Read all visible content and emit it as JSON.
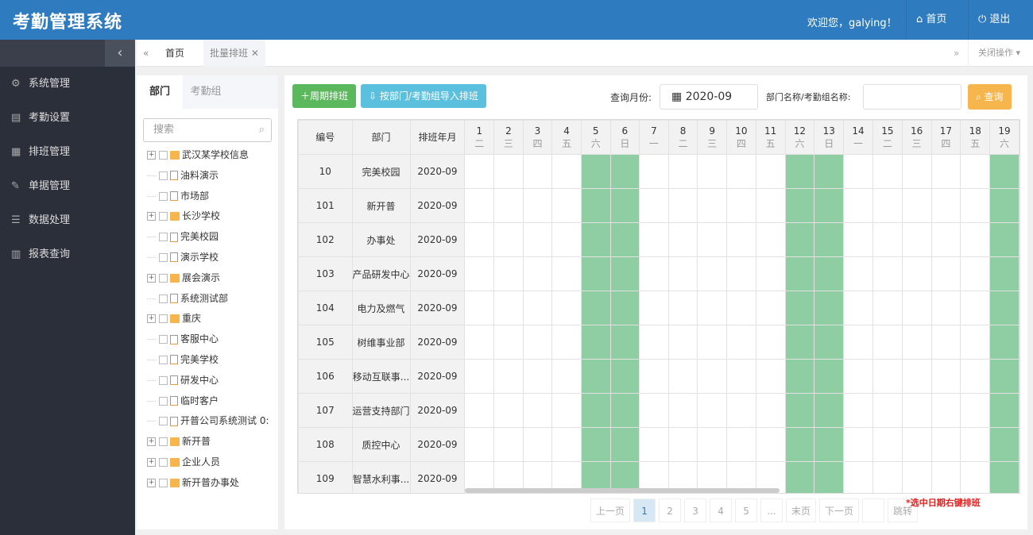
{
  "header": {
    "title": "考勤管理系统",
    "welcome": "欢迎您，galying！",
    "home": "首页",
    "logout": "退出"
  },
  "sidebar": {
    "collapse_icon": "chevron-left",
    "items": [
      {
        "label": "系统管理",
        "icon": "gear"
      },
      {
        "label": "考勤设置",
        "icon": "document"
      },
      {
        "label": "排班管理",
        "icon": "calendar"
      },
      {
        "label": "单据管理",
        "icon": "pencil"
      },
      {
        "label": "数据处理",
        "icon": "list"
      },
      {
        "label": "报表查询",
        "icon": "bar-chart"
      }
    ]
  },
  "tabs": {
    "home": "首页",
    "current": "批量排班",
    "close_ops": "关闭操作"
  },
  "left": {
    "tabs": [
      "部门",
      "考勤组"
    ],
    "search_placeholder": "搜索",
    "tree": [
      {
        "label": "武汉某学校信息",
        "folder": true
      },
      {
        "label": "油料演示",
        "folder": false
      },
      {
        "label": "市场部",
        "folder": false
      },
      {
        "label": "长沙学校",
        "folder": true
      },
      {
        "label": "完美校园",
        "folder": false
      },
      {
        "label": "演示学校",
        "folder": false
      },
      {
        "label": "展会演示",
        "folder": true
      },
      {
        "label": "系统测试部",
        "folder": false
      },
      {
        "label": "重庆",
        "folder": true
      },
      {
        "label": "客服中心",
        "folder": false
      },
      {
        "label": "完美学校",
        "folder": false
      },
      {
        "label": "研发中心",
        "folder": false
      },
      {
        "label": "临时客户",
        "folder": false
      },
      {
        "label": "开普公司系统测试 0:",
        "folder": false
      },
      {
        "label": "新开普",
        "folder": true
      },
      {
        "label": "企业人员",
        "folder": true
      },
      {
        "label": "新开普办事处",
        "folder": true
      }
    ]
  },
  "toolbar": {
    "cycle_btn": "周期排班",
    "import_btn": "按部门/考勤组导入排班",
    "month_label": "查询月份:",
    "month_value": "2020-09",
    "name_label": "部门名称/考勤组名称:",
    "name_value": "",
    "query_btn": "查询"
  },
  "table": {
    "headers": [
      "编号",
      "部门",
      "排班年月"
    ],
    "days": [
      {
        "d": "1",
        "w": "二"
      },
      {
        "d": "2",
        "w": "三"
      },
      {
        "d": "3",
        "w": "四"
      },
      {
        "d": "4",
        "w": "五"
      },
      {
        "d": "5",
        "w": "六"
      },
      {
        "d": "6",
        "w": "日"
      },
      {
        "d": "7",
        "w": "一"
      },
      {
        "d": "8",
        "w": "二"
      },
      {
        "d": "9",
        "w": "三"
      },
      {
        "d": "10",
        "w": "四"
      },
      {
        "d": "11",
        "w": "五"
      },
      {
        "d": "12",
        "w": "六"
      },
      {
        "d": "13",
        "w": "日"
      },
      {
        "d": "14",
        "w": "一"
      },
      {
        "d": "15",
        "w": "二"
      },
      {
        "d": "16",
        "w": "三"
      },
      {
        "d": "17",
        "w": "四"
      },
      {
        "d": "18",
        "w": "五"
      },
      {
        "d": "19",
        "w": "六"
      }
    ],
    "rows": [
      [
        "10",
        "完美校园",
        "2020-09"
      ],
      [
        "101",
        "新开普",
        "2020-09"
      ],
      [
        "102",
        "办事处",
        "2020-09"
      ],
      [
        "103",
        "产品研发中心",
        "2020-09"
      ],
      [
        "104",
        "电力及燃气",
        "2020-09"
      ],
      [
        "105",
        "树维事业部",
        "2020-09"
      ],
      [
        "106",
        "移动互联事...",
        "2020-09"
      ],
      [
        "107",
        "运营支持部门",
        "2020-09"
      ],
      [
        "108",
        "质控中心",
        "2020-09"
      ],
      [
        "109",
        "智慧水利事...",
        "2020-09"
      ]
    ],
    "weekend_color": "#8fcea2"
  },
  "pager": {
    "prev": "上一页",
    "pages": [
      "1",
      "2",
      "3",
      "4",
      "5",
      "..."
    ],
    "current": "1",
    "last": "末页",
    "next": "下一页",
    "jump": "跳转"
  },
  "hint": "*选中日期右键排班"
}
